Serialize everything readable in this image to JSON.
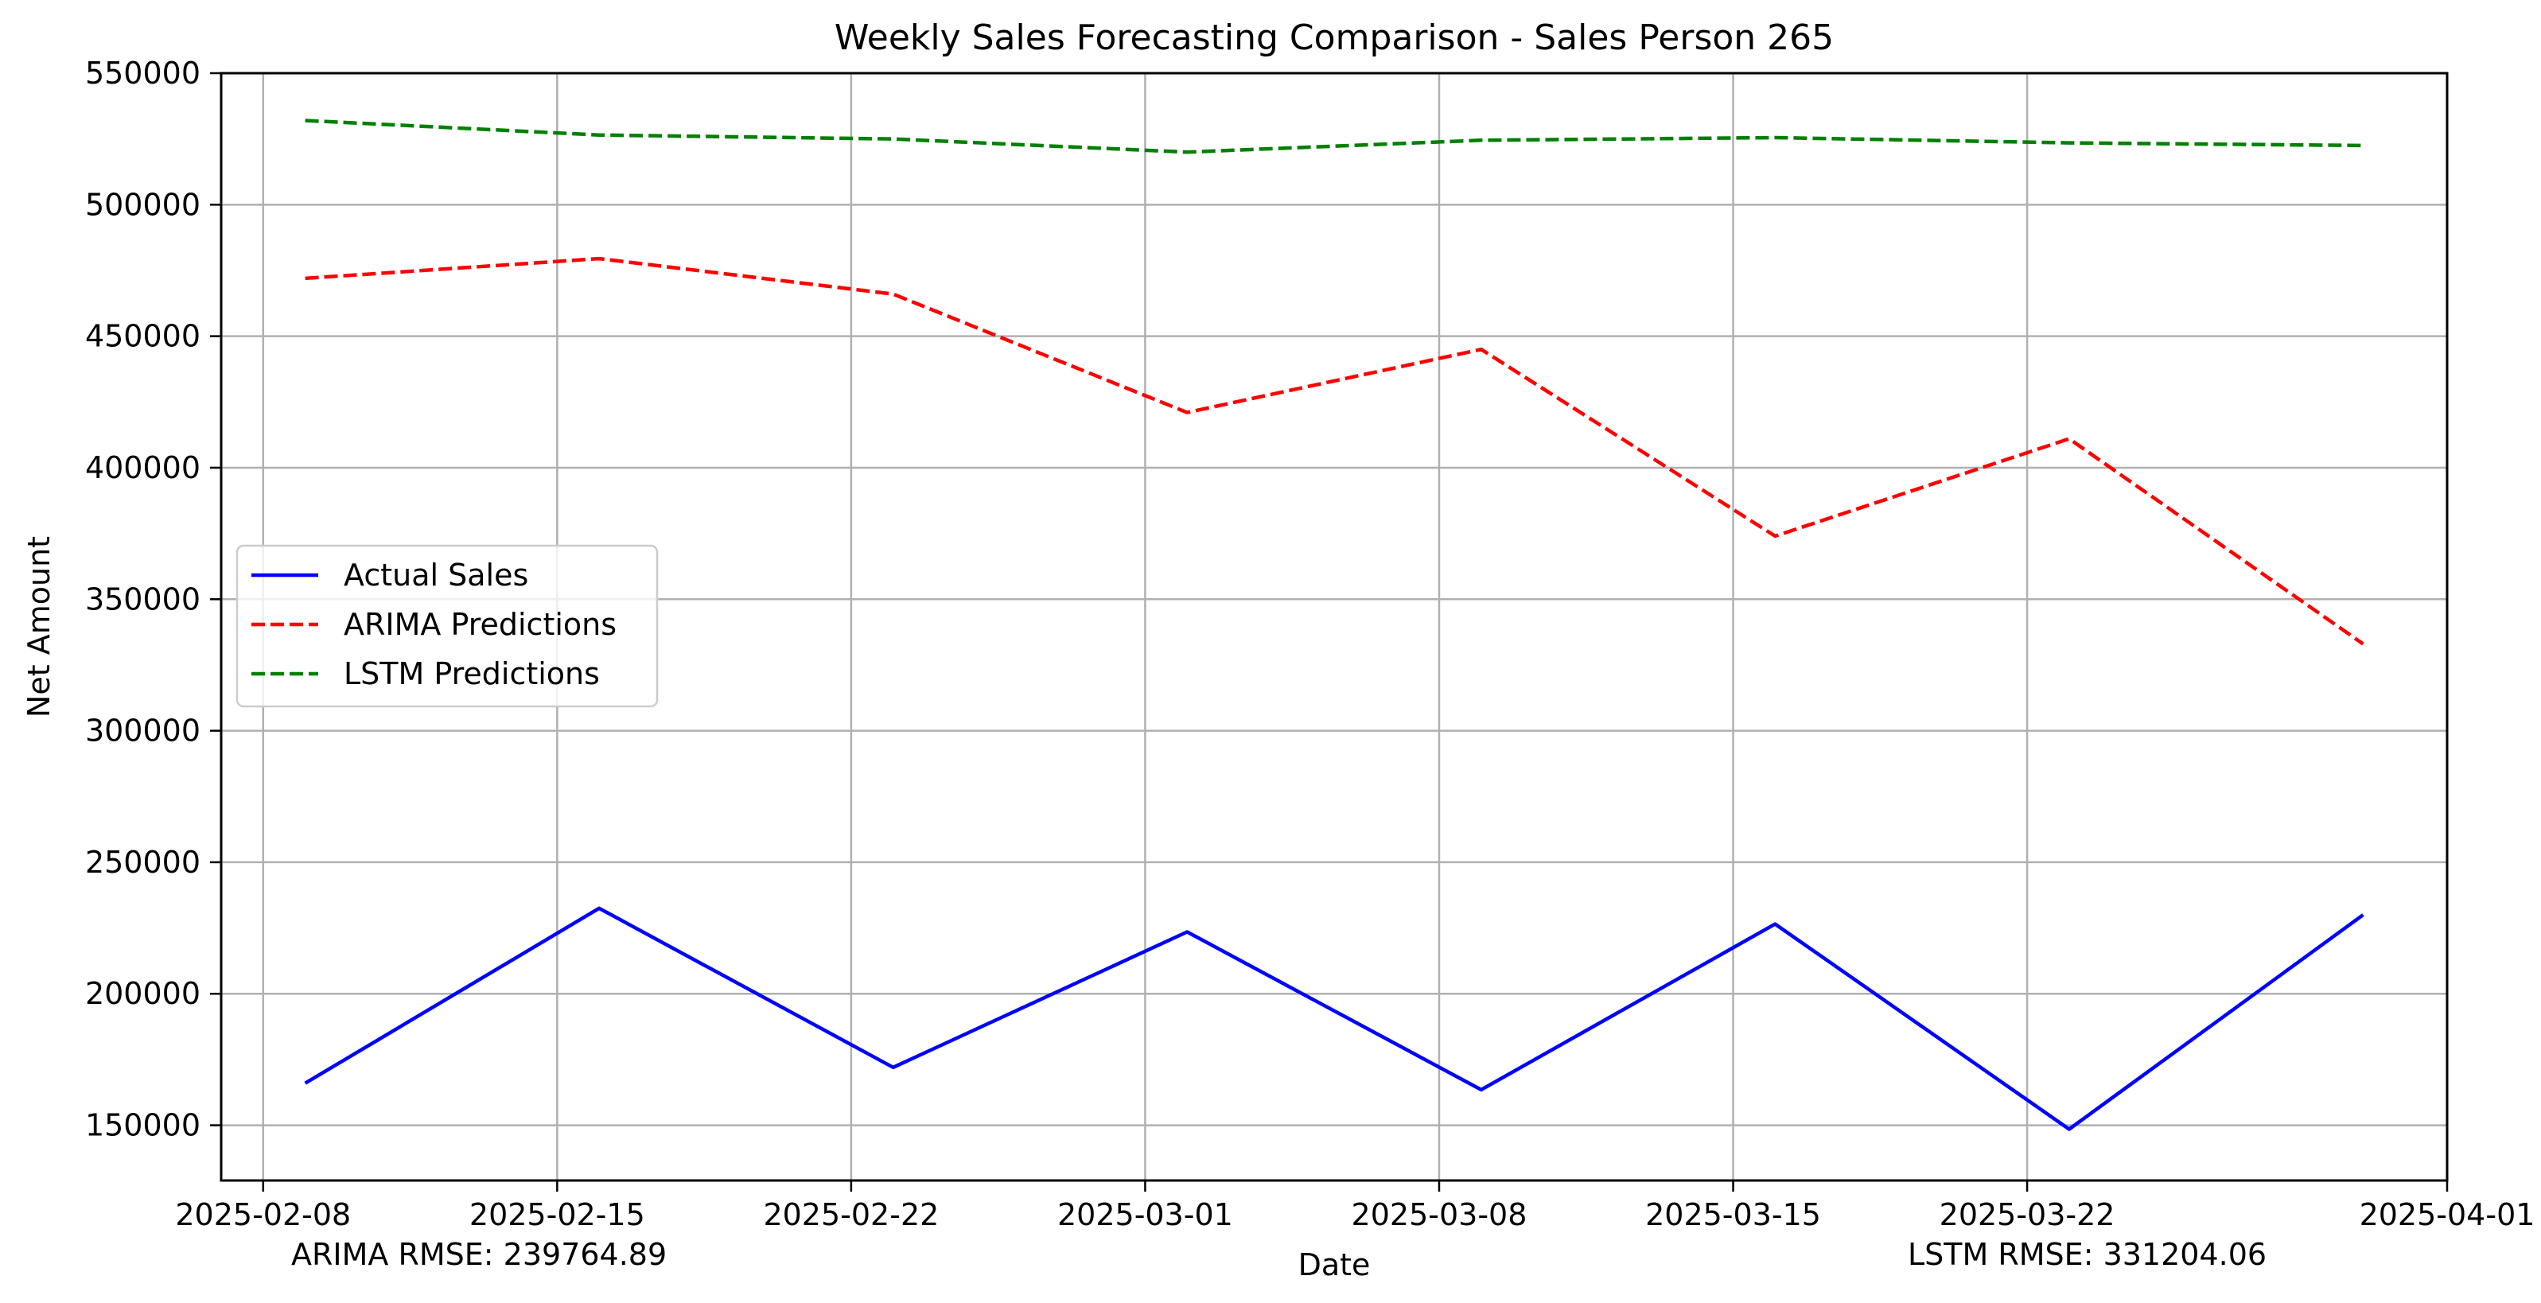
{
  "chart_data": {
    "type": "line",
    "title": "Weekly Sales Forecasting Comparison - Sales Person 265",
    "xlabel": "Date",
    "ylabel": "Net Amount",
    "x": [
      "2025-02-09",
      "2025-02-16",
      "2025-02-23",
      "2025-03-02",
      "2025-03-09",
      "2025-03-16",
      "2025-03-23",
      "2025-03-30"
    ],
    "x_ticks": [
      "2025-02-08",
      "2025-02-15",
      "2025-02-22",
      "2025-03-01",
      "2025-03-08",
      "2025-03-15",
      "2025-03-22",
      "2025-04-01"
    ],
    "xlim": [
      "2025-02-07",
      "2025-04-01"
    ],
    "y_ticks": [
      150000,
      200000,
      250000,
      300000,
      350000,
      400000,
      450000,
      500000,
      550000
    ],
    "ylim": [
      129000,
      550000
    ],
    "grid": true,
    "legend_position": "center-left",
    "series": [
      {
        "name": "Actual Sales",
        "color": "#0000ff",
        "style": "solid",
        "values": [
          166000,
          232500,
          172000,
          223500,
          163500,
          226500,
          148500,
          230000
        ]
      },
      {
        "name": "ARIMA Predictions",
        "color": "#ff0000",
        "style": "dashed",
        "values": [
          472000,
          479500,
          466000,
          421000,
          445000,
          374000,
          411000,
          333000
        ]
      },
      {
        "name": "LSTM Predictions",
        "color": "#008000",
        "style": "dashed",
        "values": [
          532000,
          526500,
          525000,
          520000,
          524500,
          525500,
          523500,
          522500
        ]
      }
    ],
    "annotations": [
      "ARIMA RMSE: 239764.89",
      "LSTM RMSE: 331204.06"
    ]
  }
}
